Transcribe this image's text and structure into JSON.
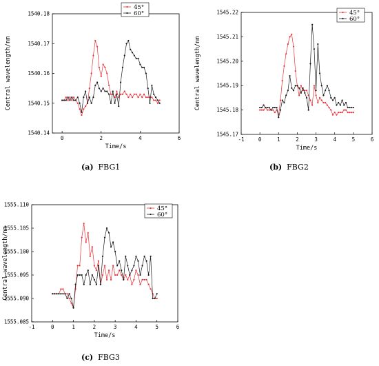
{
  "chart_data": [
    {
      "type": "line",
      "xlabel": "Time/s",
      "ylabel": "Central wavelength/nm",
      "xlim": [
        -0.5,
        6
      ],
      "ylim": [
        1540.14,
        1540.18
      ],
      "xticks": [
        "0",
        "2",
        "4",
        "6"
      ],
      "xtick_values": [
        0,
        2,
        4,
        6
      ],
      "yticks": [
        "1540.14",
        "1540.15",
        "1540.16",
        "1540.17",
        "1540.18"
      ],
      "ytick_values": [
        1540.14,
        1540.15,
        1540.16,
        1540.17,
        1540.18
      ],
      "legend_position": "top-right",
      "series": [
        {
          "name": "45°",
          "color": "#e8343a",
          "x": [
            0,
            0.1,
            0.2,
            0.3,
            0.4,
            0.5,
            0.6,
            0.7,
            0.8,
            0.9,
            1.0,
            1.1,
            1.2,
            1.3,
            1.4,
            1.5,
            1.6,
            1.7,
            1.8,
            1.9,
            2.0,
            2.1,
            2.2,
            2.3,
            2.4,
            2.5,
            2.6,
            2.7,
            2.8,
            2.9,
            3.0,
            3.1,
            3.2,
            3.3,
            3.4,
            3.5,
            3.6,
            3.7,
            3.8,
            3.9,
            4.0,
            4.1,
            4.2,
            4.3,
            4.4,
            4.5,
            4.6,
            4.7,
            4.8,
            4.9,
            5.0
          ],
          "y": [
            1540.151,
            1540.151,
            1540.152,
            1540.151,
            1540.152,
            1540.151,
            1540.152,
            1540.151,
            1540.15,
            1540.148,
            1540.146,
            1540.148,
            1540.149,
            1540.15,
            1540.155,
            1540.16,
            1540.166,
            1540.171,
            1540.169,
            1540.162,
            1540.159,
            1540.163,
            1540.162,
            1540.16,
            1540.156,
            1540.153,
            1540.153,
            1540.152,
            1540.154,
            1540.152,
            1540.153,
            1540.153,
            1540.154,
            1540.153,
            1540.152,
            1540.153,
            1540.152,
            1540.153,
            1540.153,
            1540.152,
            1540.153,
            1540.152,
            1540.153,
            1540.152,
            1540.152,
            1540.152,
            1540.152,
            1540.151,
            1540.151,
            1540.15,
            1540.151
          ]
        },
        {
          "name": "60°",
          "color": "#1a1a1a",
          "x": [
            0,
            0.1,
            0.2,
            0.3,
            0.4,
            0.5,
            0.6,
            0.7,
            0.8,
            0.9,
            1.0,
            1.1,
            1.2,
            1.3,
            1.4,
            1.5,
            1.6,
            1.7,
            1.8,
            1.9,
            2.0,
            2.1,
            2.2,
            2.3,
            2.4,
            2.5,
            2.6,
            2.7,
            2.8,
            2.9,
            3.0,
            3.1,
            3.2,
            3.3,
            3.4,
            3.5,
            3.6,
            3.7,
            3.8,
            3.9,
            4.0,
            4.1,
            4.2,
            4.3,
            4.4,
            4.5,
            4.6,
            4.7,
            4.8,
            4.9,
            5.0
          ],
          "y": [
            1540.151,
            1540.151,
            1540.151,
            1540.152,
            1540.151,
            1540.152,
            1540.151,
            1540.151,
            1540.152,
            1540.15,
            1540.147,
            1540.152,
            1540.154,
            1540.15,
            1540.152,
            1540.15,
            1540.152,
            1540.156,
            1540.157,
            1540.155,
            1540.154,
            1540.155,
            1540.154,
            1540.154,
            1540.153,
            1540.15,
            1540.154,
            1540.15,
            1540.153,
            1540.149,
            1540.157,
            1540.162,
            1540.166,
            1540.17,
            1540.171,
            1540.168,
            1540.167,
            1540.166,
            1540.165,
            1540.165,
            1540.163,
            1540.162,
            1540.162,
            1540.16,
            1540.155,
            1540.15,
            1540.156,
            1540.153,
            1540.152,
            1540.151,
            1540.15
          ]
        }
      ]
    },
    {
      "type": "line",
      "xlabel": "Time/s",
      "ylabel": "Central wavelength/nm",
      "xlim": [
        -1,
        6
      ],
      "ylim": [
        1545.17,
        1545.22
      ],
      "xticks": [
        "-1",
        "0",
        "1",
        "2",
        "3",
        "4",
        "5",
        "6"
      ],
      "xtick_values": [
        -1,
        0,
        1,
        2,
        3,
        4,
        5,
        6
      ],
      "yticks": [
        "1545.17",
        "1545.18",
        "1545.19",
        "1545.20",
        "1545.21",
        "1545.22"
      ],
      "ytick_values": [
        1545.17,
        1545.18,
        1545.19,
        1545.2,
        1545.21,
        1545.22
      ],
      "legend_position": "top-right",
      "series": [
        {
          "name": "45°",
          "color": "#e8343a",
          "x": [
            0,
            0.1,
            0.2,
            0.3,
            0.4,
            0.5,
            0.6,
            0.7,
            0.8,
            0.9,
            1.0,
            1.1,
            1.2,
            1.3,
            1.4,
            1.5,
            1.6,
            1.7,
            1.8,
            1.9,
            2.0,
            2.1,
            2.2,
            2.3,
            2.4,
            2.5,
            2.6,
            2.7,
            2.8,
            2.9,
            3.0,
            3.1,
            3.2,
            3.3,
            3.4,
            3.5,
            3.6,
            3.7,
            3.8,
            3.9,
            4.0,
            4.1,
            4.2,
            4.3,
            4.4,
            4.5,
            4.6,
            4.7,
            4.8,
            4.9,
            5.0
          ],
          "y": [
            1545.18,
            1545.18,
            1545.18,
            1545.181,
            1545.18,
            1545.18,
            1545.18,
            1545.18,
            1545.179,
            1545.18,
            1545.178,
            1545.184,
            1545.192,
            1545.198,
            1545.203,
            1545.207,
            1545.21,
            1545.211,
            1545.206,
            1545.196,
            1545.19,
            1545.186,
            1545.19,
            1545.188,
            1545.188,
            1545.188,
            1545.186,
            1545.184,
            1545.182,
            1545.19,
            1545.186,
            1545.183,
            1545.185,
            1545.184,
            1545.183,
            1545.183,
            1545.182,
            1545.181,
            1545.18,
            1545.178,
            1545.179,
            1545.178,
            1545.179,
            1545.179,
            1545.179,
            1545.18,
            1545.18,
            1545.179,
            1545.179,
            1545.179,
            1545.179
          ]
        },
        {
          "name": "60°",
          "color": "#1a1a1a",
          "x": [
            0,
            0.1,
            0.2,
            0.3,
            0.4,
            0.5,
            0.6,
            0.7,
            0.8,
            0.9,
            1.0,
            1.1,
            1.2,
            1.3,
            1.4,
            1.5,
            1.6,
            1.7,
            1.8,
            1.9,
            2.0,
            2.1,
            2.2,
            2.3,
            2.4,
            2.5,
            2.6,
            2.7,
            2.8,
            2.9,
            3.0,
            3.1,
            3.2,
            3.3,
            3.4,
            3.5,
            3.6,
            3.7,
            3.8,
            3.9,
            4.0,
            4.1,
            4.2,
            4.3,
            4.4,
            4.5,
            4.6,
            4.7,
            4.8,
            4.9,
            5.0
          ],
          "y": [
            1545.181,
            1545.181,
            1545.182,
            1545.181,
            1545.181,
            1545.181,
            1545.18,
            1545.181,
            1545.181,
            1545.181,
            1545.177,
            1545.18,
            1545.184,
            1545.183,
            1545.186,
            1545.188,
            1545.194,
            1545.189,
            1545.188,
            1545.19,
            1545.19,
            1545.189,
            1545.187,
            1545.189,
            1545.187,
            1545.185,
            1545.18,
            1545.199,
            1545.215,
            1545.205,
            1545.188,
            1545.207,
            1545.195,
            1545.19,
            1545.186,
            1545.188,
            1545.19,
            1545.188,
            1545.185,
            1545.184,
            1545.185,
            1545.182,
            1545.183,
            1545.182,
            1545.184,
            1545.182,
            1545.183,
            1545.181,
            1545.181,
            1545.181,
            1545.181
          ]
        }
      ]
    },
    {
      "type": "line",
      "xlabel": "Time/s",
      "ylabel": "Central wavelength/nm",
      "xlim": [
        -1,
        6
      ],
      "ylim": [
        1555.085,
        1555.11
      ],
      "xticks": [
        "-1",
        "0",
        "1",
        "2",
        "3",
        "4",
        "5",
        "6"
      ],
      "xtick_values": [
        -1,
        0,
        1,
        2,
        3,
        4,
        5,
        6
      ],
      "yticks": [
        "1555.085",
        "1555.090",
        "1555.095",
        "1555.100",
        "1555.105",
        "1555.110"
      ],
      "ytick_values": [
        1555.085,
        1555.09,
        1555.095,
        1555.1,
        1555.105,
        1555.11
      ],
      "legend_position": "top-right",
      "series": [
        {
          "name": "45°",
          "color": "#e8343a",
          "x": [
            0,
            0.1,
            0.2,
            0.3,
            0.4,
            0.5,
            0.6,
            0.7,
            0.8,
            0.9,
            1.0,
            1.1,
            1.2,
            1.3,
            1.4,
            1.5,
            1.6,
            1.7,
            1.8,
            1.9,
            2.0,
            2.1,
            2.2,
            2.3,
            2.4,
            2.5,
            2.6,
            2.7,
            2.8,
            2.9,
            3.0,
            3.1,
            3.2,
            3.3,
            3.4,
            3.5,
            3.6,
            3.7,
            3.8,
            3.9,
            4.0,
            4.1,
            4.2,
            4.3,
            4.4,
            4.5,
            4.6,
            4.7,
            4.8,
            4.9,
            5.0
          ],
          "y": [
            1555.091,
            1555.091,
            1555.091,
            1555.091,
            1555.092,
            1555.092,
            1555.091,
            1555.091,
            1555.09,
            1555.089,
            1555.088,
            1555.092,
            1555.097,
            1555.097,
            1555.103,
            1555.106,
            1555.102,
            1555.104,
            1555.099,
            1555.101,
            1555.097,
            1555.096,
            1555.098,
            1555.093,
            1555.095,
            1555.097,
            1555.094,
            1555.096,
            1555.094,
            1555.097,
            1555.095,
            1555.095,
            1555.096,
            1555.095,
            1555.094,
            1555.095,
            1555.094,
            1555.095,
            1555.093,
            1555.094,
            1555.096,
            1555.095,
            1555.093,
            1555.094,
            1555.094,
            1555.094,
            1555.093,
            1555.092,
            1555.091,
            1555.09,
            1555.09
          ]
        },
        {
          "name": "60°",
          "color": "#1a1a1a",
          "x": [
            0,
            0.1,
            0.2,
            0.3,
            0.4,
            0.5,
            0.6,
            0.7,
            0.8,
            0.9,
            1.0,
            1.1,
            1.2,
            1.3,
            1.4,
            1.5,
            1.6,
            1.7,
            1.8,
            1.9,
            2.0,
            2.1,
            2.2,
            2.3,
            2.4,
            2.5,
            2.6,
            2.7,
            2.8,
            2.9,
            3.0,
            3.1,
            3.2,
            3.3,
            3.4,
            3.5,
            3.6,
            3.7,
            3.8,
            3.9,
            4.0,
            4.1,
            4.2,
            4.3,
            4.4,
            4.5,
            4.6,
            4.7,
            4.8,
            4.9,
            5.0
          ],
          "y": [
            1555.091,
            1555.091,
            1555.091,
            1555.091,
            1555.091,
            1555.091,
            1555.091,
            1555.09,
            1555.091,
            1555.09,
            1555.088,
            1555.093,
            1555.095,
            1555.095,
            1555.095,
            1555.093,
            1555.095,
            1555.096,
            1555.093,
            1555.095,
            1555.094,
            1555.093,
            1555.097,
            1555.093,
            1555.099,
            1555.103,
            1555.105,
            1555.104,
            1555.101,
            1555.102,
            1555.1,
            1555.097,
            1555.098,
            1555.096,
            1555.094,
            1555.099,
            1555.097,
            1555.095,
            1555.096,
            1555.097,
            1555.099,
            1555.098,
            1555.095,
            1555.097,
            1555.099,
            1555.098,
            1555.095,
            1555.099,
            1555.09,
            1555.09,
            1555.091
          ]
        }
      ]
    }
  ],
  "captions": [
    {
      "label": "(a)",
      "text": "FBG1"
    },
    {
      "label": "(b)",
      "text": "FBG2"
    },
    {
      "label": "(c)",
      "text": "FBG3"
    }
  ]
}
